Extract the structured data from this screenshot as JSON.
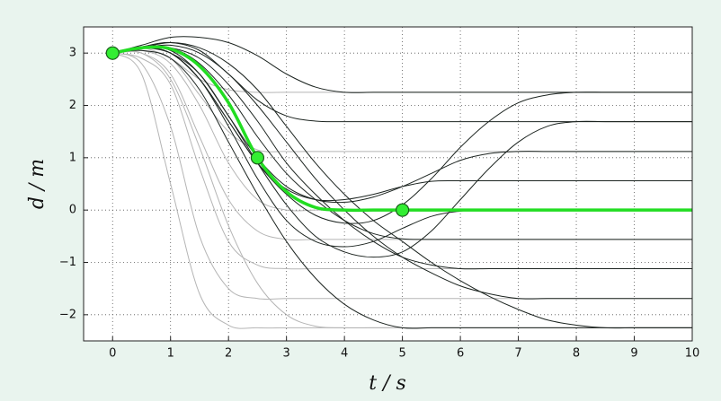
{
  "chart_data": {
    "type": "line",
    "xlabel": "t / s",
    "ylabel": "d / m",
    "x": [
      0,
      0.5,
      1,
      1.5,
      2,
      2.5,
      3,
      3.5,
      4,
      4.5,
      5,
      5.5,
      6,
      6.5,
      7,
      7.5,
      8,
      8.5,
      9,
      9.5,
      10
    ],
    "xlim": [
      -0.5,
      10
    ],
    "ylim": [
      -2.5,
      3.5
    ],
    "xticks": [
      0,
      1,
      2,
      3,
      4,
      5,
      6,
      7,
      8,
      9,
      10
    ],
    "yticks": [
      {
        "value": -2,
        "label": "−2"
      },
      {
        "value": -1,
        "label": "−1"
      },
      0,
      1,
      2,
      3
    ],
    "grid": true,
    "series": [
      {
        "color": "#b5b5b5",
        "values": [
          3,
          2.6,
          0.5,
          -1.6,
          -2.2,
          -2.25,
          -2.25,
          -2.25,
          -2.25,
          -2.25,
          -2.25,
          -2.25,
          -2.25,
          -2.25,
          -2.25,
          -2.25,
          -2.25,
          -2.25,
          -2.25,
          -2.25,
          -2.25
        ]
      },
      {
        "color": "#b5b5b5",
        "values": [
          3,
          2.8,
          1.6,
          -0.5,
          -1.5,
          -1.69,
          -1.69,
          -1.69,
          -1.69,
          -1.69,
          -1.69,
          -1.69,
          -1.69,
          -1.69,
          -1.69,
          -1.69,
          -1.69,
          -1.69,
          -1.69,
          -1.69,
          -1.69
        ]
      },
      {
        "color": "#b5b5b5",
        "values": [
          3,
          2.9,
          2.4,
          0.8,
          -0.6,
          -1.05,
          -1.12,
          -1.12,
          -1.12,
          -1.12,
          -1.12,
          -1.12,
          -1.12,
          -1.12,
          -1.12,
          -1.12,
          -1.12,
          -1.12,
          -1.12,
          -1.12,
          -1.12
        ]
      },
      {
        "color": "#b5b5b5",
        "values": [
          3,
          3.0,
          2.6,
          1.4,
          0.2,
          -0.4,
          -0.56,
          -0.56,
          -0.56,
          -0.56,
          -0.56,
          -0.56,
          -0.56,
          -0.56,
          -0.56,
          -0.56,
          -0.56,
          -0.56,
          -0.56,
          -0.56,
          -0.56
        ]
      },
      {
        "color": "#b5b5b5",
        "values": [
          3,
          3.05,
          2.8,
          2.0,
          0.9,
          0.2,
          0,
          0,
          0,
          0,
          0,
          0,
          0,
          0,
          0,
          0,
          0,
          0,
          0,
          0,
          0
        ]
      },
      {
        "color": "#b5b5b5",
        "values": [
          3,
          3.05,
          2.9,
          2.2,
          1.5,
          1.15,
          1.12,
          1.12,
          1.12,
          1.12,
          1.12,
          1.12,
          1.12,
          1.12,
          1.12,
          1.12,
          1.12,
          1.12,
          1.12,
          1.12,
          1.12
        ]
      },
      {
        "color": "#b5b5b5",
        "values": [
          3,
          3.1,
          2.9,
          2.5,
          2.3,
          2.25,
          2.25,
          2.25,
          2.25,
          2.25,
          2.25,
          2.25,
          2.25,
          2.25,
          2.25,
          2.25,
          2.25,
          2.25,
          2.25,
          2.25,
          2.25
        ]
      },
      {
        "color": "#b5b5b5",
        "values": [
          3,
          3.0,
          2.5,
          1.2,
          -0.3,
          -1.4,
          -2.0,
          -2.22,
          -2.25,
          -2.25,
          -2.25,
          -2.25,
          -2.25,
          -2.25,
          -2.25,
          -2.25,
          -2.25,
          -2.25,
          -2.25,
          -2.25,
          -2.25
        ]
      },
      {
        "color": "#1c2420",
        "values": [
          3,
          3.15,
          3.3,
          3.3,
          3.2,
          2.95,
          2.6,
          2.35,
          2.25,
          2.25,
          2.25,
          2.25,
          2.25,
          2.25,
          2.25,
          2.25,
          2.25,
          2.25,
          2.25,
          2.25,
          2.25
        ]
      },
      {
        "color": "#1c2420",
        "values": [
          3,
          3.12,
          3.2,
          3.05,
          2.6,
          2.1,
          1.8,
          1.7,
          1.69,
          1.69,
          1.69,
          1.69,
          1.69,
          1.69,
          1.69,
          1.69,
          1.69,
          1.69,
          1.69,
          1.69,
          1.69
        ]
      },
      {
        "color": "#1c2420",
        "values": [
          3,
          3.1,
          3.05,
          2.6,
          1.8,
          1.0,
          0.45,
          0.2,
          0.15,
          0.25,
          0.45,
          0.7,
          0.95,
          1.08,
          1.12,
          1.12,
          1.12,
          1.12,
          1.12,
          1.12,
          1.12
        ]
      },
      {
        "color": "#1c2420",
        "values": [
          3,
          3.1,
          3.0,
          2.5,
          1.7,
          0.9,
          0.4,
          0.2,
          0.2,
          0.3,
          0.45,
          0.55,
          0.56,
          0.56,
          0.56,
          0.56,
          0.56,
          0.56,
          0.56,
          0.56,
          0.56
        ]
      },
      {
        "color": "#1c2420",
        "values": [
          3,
          3.1,
          3.0,
          2.5,
          1.7,
          0.9,
          0.3,
          -0.1,
          -0.25,
          -0.2,
          0.1,
          0.6,
          1.2,
          1.7,
          2.05,
          2.2,
          2.25,
          2.25,
          2.25,
          2.25,
          2.25
        ]
      },
      {
        "color": "#1c2420",
        "values": [
          3,
          3.1,
          3.1,
          2.8,
          2.2,
          1.4,
          0.7,
          0.2,
          -0.2,
          -0.45,
          -0.55,
          -0.56,
          -0.56,
          -0.56,
          -0.56,
          -0.56,
          -0.56,
          -0.56,
          -0.56,
          -0.56,
          -0.56
        ]
      },
      {
        "color": "#1c2420",
        "values": [
          3,
          3.1,
          3.1,
          2.9,
          2.4,
          1.7,
          0.9,
          0.3,
          -0.2,
          -0.6,
          -0.9,
          -1.05,
          -1.12,
          -1.12,
          -1.12,
          -1.12,
          -1.12,
          -1.12,
          -1.12,
          -1.12,
          -1.12
        ]
      },
      {
        "color": "#1c2420",
        "values": [
          3,
          3.1,
          3.15,
          3.0,
          2.6,
          2.0,
          1.3,
          0.6,
          0.0,
          -0.5,
          -0.9,
          -1.2,
          -1.45,
          -1.6,
          -1.69,
          -1.69,
          -1.69,
          -1.69,
          -1.69,
          -1.69,
          -1.69
        ]
      },
      {
        "color": "#1c2420",
        "values": [
          3,
          3.1,
          3.2,
          3.1,
          2.8,
          2.3,
          1.6,
          0.9,
          0.3,
          -0.2,
          -0.6,
          -1.0,
          -1.35,
          -1.65,
          -1.9,
          -2.1,
          -2.2,
          -2.25,
          -2.25,
          -2.25,
          -2.25
        ]
      },
      {
        "color": "#1c2420",
        "values": [
          3,
          3.1,
          3.0,
          2.6,
          1.8,
          0.9,
          0.1,
          -0.5,
          -0.8,
          -0.9,
          -0.8,
          -0.4,
          0.2,
          0.8,
          1.3,
          1.6,
          1.69,
          1.69,
          1.69,
          1.69,
          1.69
        ]
      },
      {
        "color": "#1c2420",
        "values": [
          3,
          3.05,
          2.9,
          2.3,
          1.3,
          0.3,
          -0.6,
          -1.3,
          -1.8,
          -2.1,
          -2.25,
          -2.25,
          -2.25,
          -2.25,
          -2.25,
          -2.25,
          -2.25,
          -2.25,
          -2.25,
          -2.25,
          -2.25
        ]
      },
      {
        "color": "#1c2420",
        "values": [
          3,
          3.1,
          3.0,
          2.5,
          1.6,
          0.6,
          -0.2,
          -0.6,
          -0.7,
          -0.6,
          -0.35,
          -0.12,
          -0.02,
          0,
          0,
          0,
          0,
          0,
          0,
          0,
          0
        ]
      },
      {
        "color": "#22dd22",
        "width": 3.5,
        "values": [
          3,
          3.1,
          3.08,
          2.75,
          2.05,
          1.0,
          0.35,
          0.05,
          0,
          0,
          0,
          0,
          0,
          0,
          0,
          0,
          0,
          0,
          0,
          0,
          0
        ]
      }
    ],
    "markers": {
      "color": "#33ee33",
      "x": [
        0,
        2.5,
        5
      ],
      "values": [
        3,
        1,
        0
      ]
    }
  }
}
